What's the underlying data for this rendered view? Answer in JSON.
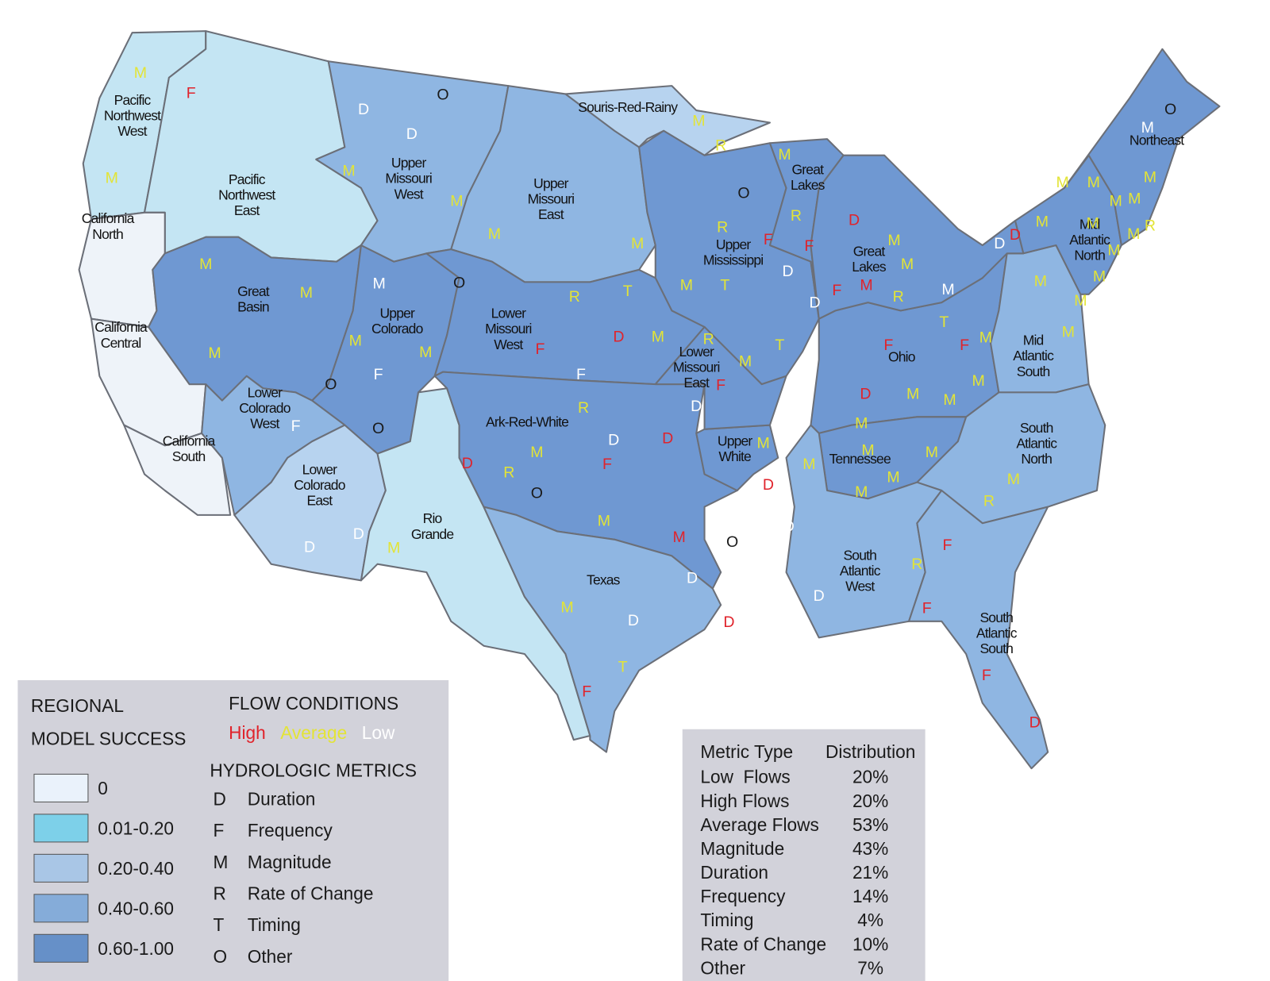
{
  "legend": {
    "title": [
      "REGIONAL",
      "MODEL SUCCESS"
    ],
    "classes": [
      {
        "label": "0",
        "color": "#eaf2fb"
      },
      {
        "label": "0.01-0.20",
        "color": "#7dd0e9"
      },
      {
        "label": "0.20-0.40",
        "color": "#a9c6e6"
      },
      {
        "label": "0.40-0.60",
        "color": "#85acd9"
      },
      {
        "label": "0.60-1.00",
        "color": "#6690c8"
      }
    ]
  },
  "flow_conditions": {
    "title": "FLOW CONDITIONS",
    "items": [
      {
        "label": "High",
        "color": "#e0232b"
      },
      {
        "label": "Average",
        "color": "#e3e436"
      },
      {
        "label": "Low",
        "color": "#ffffff"
      }
    ]
  },
  "hydrologic_metrics": {
    "title": "HYDROLOGIC METRICS",
    "items": [
      {
        "code": "D",
        "name": "Duration"
      },
      {
        "code": "F",
        "name": "Frequency"
      },
      {
        "code": "M",
        "name": "Magnitude"
      },
      {
        "code": "R",
        "name": "Rate of Change"
      },
      {
        "code": "T",
        "name": "Timing"
      },
      {
        "code": "O",
        "name": "Other"
      }
    ]
  },
  "table": {
    "headers": [
      "Metric Type",
      "Distribution"
    ],
    "rows": [
      [
        "Low  Flows",
        "20%"
      ],
      [
        "High Flows",
        "20%"
      ],
      [
        "Average Flows",
        "53%"
      ],
      [
        "Magnitude",
        "43%"
      ],
      [
        "Duration",
        "21%"
      ],
      [
        "Frequency",
        "14%"
      ],
      [
        "Timing",
        "4%"
      ],
      [
        "Rate of Change",
        "10%"
      ],
      [
        "Other",
        "7%"
      ]
    ]
  },
  "regions": [
    {
      "name": [
        "Pacific",
        "Northwest",
        "West"
      ],
      "color": "#c4e5f3"
    },
    {
      "name": [
        "Pacific",
        "Northwest",
        "East"
      ],
      "color": "#c4e5f3"
    },
    {
      "name": [
        "California",
        "North"
      ],
      "color": "#eef3f9"
    },
    {
      "name": [
        "California",
        "Central"
      ],
      "color": "#eef3f9"
    },
    {
      "name": [
        "California",
        "South"
      ],
      "color": "#eef3f9"
    },
    {
      "name": [
        "Great",
        "Basin"
      ],
      "color": "#6f98d2"
    },
    {
      "name": [
        "Upper",
        "Colorado"
      ],
      "color": "#6f98d2"
    },
    {
      "name": [
        "Lower",
        "Colorado",
        "West"
      ],
      "color": "#8fb6e2"
    },
    {
      "name": [
        "Lower",
        "Colorado",
        "East"
      ],
      "color": "#b7d3ef"
    },
    {
      "name": [
        "Rio",
        "Grande"
      ],
      "color": "#c4e5f3"
    },
    {
      "name": [
        "Upper",
        "Missouri",
        "West"
      ],
      "color": "#8fb6e2"
    },
    {
      "name": [
        "Upper",
        "Missouri",
        "East"
      ],
      "color": "#8fb6e2"
    },
    {
      "name": [
        "Souris-Red-Rainy"
      ],
      "color": "#b7d3ef"
    },
    {
      "name": [
        "Upper",
        "Mississippi"
      ],
      "color": "#6f98d2"
    },
    {
      "name": [
        "Great",
        "Lakes"
      ],
      "color": "#6f98d2"
    },
    {
      "name": [
        "Lower",
        "Missouri",
        "West"
      ],
      "color": "#6f98d2"
    },
    {
      "name": [
        "Ark-Red-White"
      ],
      "color": "#6f98d2"
    },
    {
      "name": [
        "Upper",
        "White"
      ],
      "color": "#6f98d2"
    },
    {
      "name": [
        "Texas"
      ],
      "color": "#8fb6e2"
    },
    {
      "name": [
        "Lower",
        "Missouri",
        "East"
      ],
      "color": "#6f98d2"
    },
    {
      "name": [
        "Ohio"
      ],
      "color": "#6f98d2"
    },
    {
      "name": [
        "Tennessee"
      ],
      "color": "#6f98d2"
    },
    {
      "name": [
        "Mid",
        "Atlantic",
        "South"
      ],
      "color": "#8fb6e2"
    },
    {
      "name": [
        "Mid",
        "Atlantic",
        "North"
      ],
      "color": "#6f98d2"
    },
    {
      "name": [
        "Northeast"
      ],
      "color": "#6f98d2"
    },
    {
      "name": [
        "South",
        "Atlantic",
        "North"
      ],
      "color": "#8fb6e2"
    },
    {
      "name": [
        "South",
        "Atlantic",
        "West"
      ],
      "color": "#8fb6e2"
    },
    {
      "name": [
        "South",
        "Atlantic",
        "South"
      ],
      "color": "#8fb6e2"
    },
    {
      "name": [
        "Great",
        "Lakes"
      ],
      "color": "#6f98d2"
    }
  ],
  "markers": [
    {
      "text": "M",
      "color": "#e3e436"
    },
    {
      "text": "F",
      "color": "#e0232b"
    },
    {
      "text": "M",
      "color": "#e3e436"
    },
    {
      "text": "O",
      "color": "#1a1a1a"
    },
    {
      "text": "D",
      "color": "#ffffff"
    },
    {
      "text": "D",
      "color": "#ffffff"
    },
    {
      "text": "M",
      "color": "#e3e436"
    },
    {
      "text": "M",
      "color": "#e3e436"
    },
    {
      "text": "M",
      "color": "#e3e436"
    },
    {
      "text": "M",
      "color": "#e3e436"
    },
    {
      "text": "M",
      "color": "#e3e436"
    },
    {
      "text": "R",
      "color": "#e3e436"
    },
    {
      "text": "M",
      "color": "#e3e436"
    },
    {
      "text": "O",
      "color": "#1a1a1a"
    },
    {
      "text": "R",
      "color": "#e3e436"
    },
    {
      "text": "F",
      "color": "#e0232b"
    },
    {
      "text": "R",
      "color": "#e3e436"
    },
    {
      "text": "F",
      "color": "#e0232b"
    },
    {
      "text": "D",
      "color": "#ffffff"
    },
    {
      "text": "M",
      "color": "#e3e436"
    },
    {
      "text": "T",
      "color": "#e3e436"
    },
    {
      "text": "D",
      "color": "#ffffff"
    },
    {
      "text": "F",
      "color": "#e0232b"
    },
    {
      "text": "D",
      "color": "#e0232b"
    },
    {
      "text": "M",
      "color": "#e3e436"
    },
    {
      "text": "M",
      "color": "#e3e436"
    },
    {
      "text": "M",
      "color": "#e0232b"
    },
    {
      "text": "R",
      "color": "#e3e436"
    },
    {
      "text": "M",
      "color": "#ffffff"
    },
    {
      "text": "M",
      "color": "#e3e436"
    },
    {
      "text": "M",
      "color": "#e3e436"
    },
    {
      "text": "M",
      "color": "#e3e436"
    },
    {
      "text": "M",
      "color": "#ffffff"
    },
    {
      "text": "O",
      "color": "#1a1a1a"
    },
    {
      "text": "R",
      "color": "#e3e436"
    },
    {
      "text": "T",
      "color": "#e3e436"
    },
    {
      "text": "D",
      "color": "#e0232b"
    },
    {
      "text": "M",
      "color": "#e3e436"
    },
    {
      "text": "M",
      "color": "#e3e436"
    },
    {
      "text": "F",
      "color": "#ffffff"
    },
    {
      "text": "O",
      "color": "#1a1a1a"
    },
    {
      "text": "O",
      "color": "#1a1a1a"
    },
    {
      "text": "F",
      "color": "#ffffff"
    },
    {
      "text": "F",
      "color": "#e0232b"
    },
    {
      "text": "F",
      "color": "#ffffff"
    },
    {
      "text": "M",
      "color": "#e3e436"
    },
    {
      "text": "R",
      "color": "#e3e436"
    },
    {
      "text": "M",
      "color": "#e3e436"
    },
    {
      "text": "T",
      "color": "#e3e436"
    },
    {
      "text": "F",
      "color": "#e0232b"
    },
    {
      "text": "D",
      "color": "#ffffff"
    },
    {
      "text": "D",
      "color": "#ffffff"
    },
    {
      "text": "R",
      "color": "#e3e436"
    },
    {
      "text": "D",
      "color": "#ffffff"
    },
    {
      "text": "D",
      "color": "#e0232b"
    },
    {
      "text": "M",
      "color": "#e3e436"
    },
    {
      "text": "D",
      "color": "#e0232b"
    },
    {
      "text": "R",
      "color": "#e3e436"
    },
    {
      "text": "F",
      "color": "#e0232b"
    },
    {
      "text": "O",
      "color": "#1a1a1a"
    },
    {
      "text": "M",
      "color": "#e3e436"
    },
    {
      "text": "M",
      "color": "#e0232b"
    },
    {
      "text": "O",
      "color": "#1a1a1a"
    },
    {
      "text": "D",
      "color": "#ffffff"
    },
    {
      "text": "F",
      "color": "#ffffff"
    },
    {
      "text": "D",
      "color": "#ffffff"
    },
    {
      "text": "D",
      "color": "#e0232b"
    },
    {
      "text": "M",
      "color": "#e3e436"
    },
    {
      "text": "M",
      "color": "#e3e436"
    },
    {
      "text": "D",
      "color": "#e0232b"
    },
    {
      "text": "D",
      "color": "#ffffff"
    },
    {
      "text": "D",
      "color": "#ffffff"
    },
    {
      "text": "M",
      "color": "#e3e436"
    },
    {
      "text": "M",
      "color": "#e3e436"
    },
    {
      "text": "D",
      "color": "#ffffff"
    },
    {
      "text": "T",
      "color": "#e3e436"
    },
    {
      "text": "F",
      "color": "#e0232b"
    },
    {
      "text": "F",
      "color": "#e0232b"
    },
    {
      "text": "T",
      "color": "#e3e436"
    },
    {
      "text": "F",
      "color": "#e0232b"
    },
    {
      "text": "M",
      "color": "#e3e436"
    },
    {
      "text": "D",
      "color": "#e0232b"
    },
    {
      "text": "M",
      "color": "#e3e436"
    },
    {
      "text": "M",
      "color": "#e3e436"
    },
    {
      "text": "M",
      "color": "#e3e436"
    },
    {
      "text": "M",
      "color": "#e3e436"
    },
    {
      "text": "M",
      "color": "#e3e436"
    },
    {
      "text": "M",
      "color": "#e3e436"
    },
    {
      "text": "M",
      "color": "#e3e436"
    },
    {
      "text": "M",
      "color": "#e3e436"
    },
    {
      "text": "D",
      "color": "#ffffff"
    },
    {
      "text": "R",
      "color": "#e3e436"
    },
    {
      "text": "F",
      "color": "#e0232b"
    },
    {
      "text": "F",
      "color": "#e0232b"
    },
    {
      "text": "R",
      "color": "#e3e436"
    },
    {
      "text": "M",
      "color": "#e3e436"
    },
    {
      "text": "M",
      "color": "#e3e436"
    },
    {
      "text": "M",
      "color": "#e3e436"
    },
    {
      "text": "M",
      "color": "#e3e436"
    },
    {
      "text": "M",
      "color": "#e3e436"
    },
    {
      "text": "F",
      "color": "#e0232b"
    },
    {
      "text": "D",
      "color": "#e0232b"
    },
    {
      "text": "O",
      "color": "#1a1a1a"
    },
    {
      "text": "M",
      "color": "#ffffff"
    },
    {
      "text": "M",
      "color": "#e3e436"
    },
    {
      "text": "M",
      "color": "#e3e436"
    },
    {
      "text": "M",
      "color": "#e3e436"
    },
    {
      "text": "M",
      "color": "#e3e436"
    },
    {
      "text": "M",
      "color": "#e3e436"
    },
    {
      "text": "M",
      "color": "#e3e436"
    },
    {
      "text": "M",
      "color": "#e3e436"
    },
    {
      "text": "M",
      "color": "#e3e436"
    },
    {
      "text": "R",
      "color": "#e3e436"
    },
    {
      "text": "M",
      "color": "#e3e436"
    },
    {
      "text": "D",
      "color": "#ffffff"
    },
    {
      "text": "D",
      "color": "#e0232b"
    }
  ]
}
